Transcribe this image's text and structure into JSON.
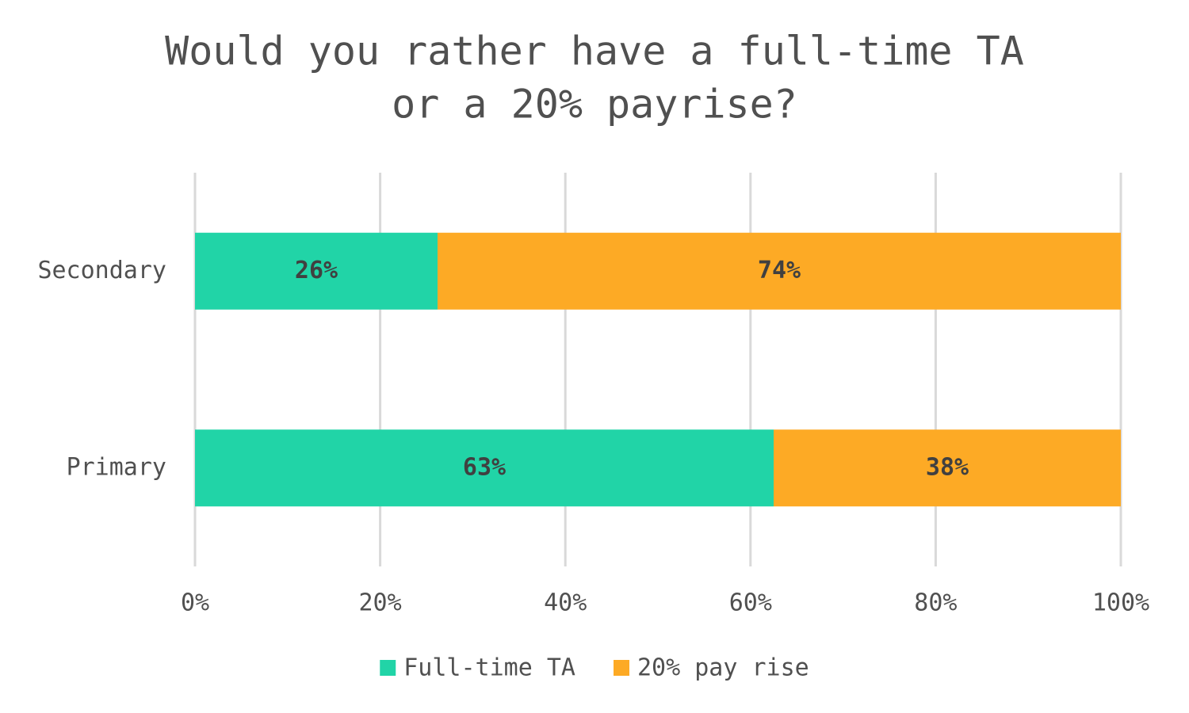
{
  "chart_data": {
    "type": "stacked-bar-horizontal",
    "title": [
      "Would you rather have a full-time TA",
      "or a 20% payrise?"
    ],
    "categories": [
      "Secondary",
      "Primary"
    ],
    "series": [
      {
        "name": "Full-time TA",
        "color": "#21d4a7",
        "values": [
          26.2,
          62.5
        ],
        "value_labels": [
          "26%",
          "63%"
        ]
      },
      {
        "name": "20% pay rise",
        "color": "#fdaa25",
        "values": [
          73.8,
          37.5
        ],
        "value_labels": [
          "74%",
          "38%"
        ]
      }
    ],
    "xlim": [
      0,
      100
    ],
    "xticks": [
      {
        "value": 0,
        "label": "0%"
      },
      {
        "value": 20,
        "label": "20%"
      },
      {
        "value": 40,
        "label": "40%"
      },
      {
        "value": 60,
        "label": "60%"
      },
      {
        "value": 80,
        "label": "80%"
      },
      {
        "value": 100,
        "label": "100%"
      }
    ],
    "grid": true,
    "legend": "bottom"
  }
}
